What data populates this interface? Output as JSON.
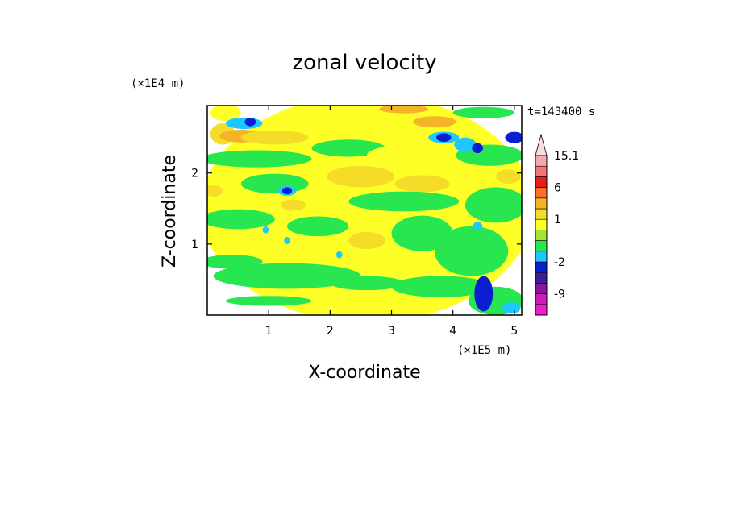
{
  "chart_data": {
    "type": "heatmap",
    "title": "zonal velocity",
    "xlabel": "X-coordinate",
    "ylabel": "Z-coordinate",
    "x_unit": "(×1E5 m)",
    "y_unit": "(×1E4 m)",
    "time_label": "t=143400 s",
    "xlim": [
      0,
      5.12
    ],
    "ylim": [
      0,
      2.95
    ],
    "x_ticks": [
      "1",
      "2",
      "3",
      "4",
      "5"
    ],
    "y_ticks": [
      "1",
      "2"
    ],
    "colorbar": {
      "labels": [
        {
          "text": "15.1",
          "value": 15.1
        },
        {
          "text": "6",
          "value": 6
        },
        {
          "text": "1",
          "value": 1
        },
        {
          "text": "-2",
          "value": -2
        },
        {
          "text": "-9",
          "value": -9
        }
      ],
      "bands": [
        {
          "lo": -16,
          "hi": -12,
          "color": "#f01ec8"
        },
        {
          "lo": -12,
          "hi": -9,
          "color": "#c81eb4"
        },
        {
          "lo": -9,
          "hi": -6,
          "color": "#8c14a0"
        },
        {
          "lo": -6,
          "hi": -4,
          "color": "#3a1e96"
        },
        {
          "lo": -4,
          "hi": -2,
          "color": "#0a1ed2"
        },
        {
          "lo": -2,
          "hi": -1,
          "color": "#1ec8ff"
        },
        {
          "lo": -1,
          "hi": 0,
          "color": "#28e650"
        },
        {
          "lo": 0,
          "hi": 0.5,
          "color": "#a0e632"
        },
        {
          "lo": 0.5,
          "hi": 1,
          "color": "#ffff28"
        },
        {
          "lo": 1,
          "hi": 2,
          "color": "#f5dc28"
        },
        {
          "lo": 2,
          "hi": 4,
          "color": "#f5b428"
        },
        {
          "lo": 4,
          "hi": 6,
          "color": "#ff6e28"
        },
        {
          "lo": 6,
          "hi": 9,
          "color": "#e61e1e"
        },
        {
          "lo": 9,
          "hi": 12,
          "color": "#f07878"
        },
        {
          "lo": 12,
          "hi": 15.1,
          "color": "#f5aaaa"
        },
        {
          "lo": 15.1,
          "hi": 18,
          "color": "#fadcdc"
        }
      ]
    },
    "field_patches": [
      {
        "x": 2.6,
        "z": 1.5,
        "rx": 2.7,
        "rz": 1.6,
        "v": 0.8
      },
      {
        "x": 0.25,
        "z": 2.55,
        "rx": 0.2,
        "rz": 0.15,
        "v": 1.5
      },
      {
        "x": 0.3,
        "z": 2.85,
        "rx": 0.25,
        "rz": 0.12,
        "v": 0.9
      },
      {
        "x": 0.55,
        "z": 2.52,
        "rx": 0.35,
        "rz": 0.09,
        "v": 3
      },
      {
        "x": 1.1,
        "z": 2.5,
        "rx": 0.55,
        "rz": 0.1,
        "v": 1.5
      },
      {
        "x": 0.8,
        "z": 2.2,
        "rx": 0.9,
        "rz": 0.12,
        "v": -0.5
      },
      {
        "x": 2.3,
        "z": 2.35,
        "rx": 0.6,
        "rz": 0.12,
        "v": -0.5
      },
      {
        "x": 3.3,
        "z": 2.25,
        "rx": 0.7,
        "rz": 0.15,
        "v": 0.9
      },
      {
        "x": 4.6,
        "z": 2.25,
        "rx": 0.55,
        "rz": 0.15,
        "v": -0.5
      },
      {
        "x": 0.6,
        "z": 2.7,
        "rx": 0.3,
        "rz": 0.08,
        "v": -1.5
      },
      {
        "x": 0.7,
        "z": 2.72,
        "rx": 0.09,
        "rz": 0.06,
        "v": -3
      },
      {
        "x": 3.7,
        "z": 2.72,
        "rx": 0.35,
        "rz": 0.08,
        "v": 2.5
      },
      {
        "x": 3.2,
        "z": 2.9,
        "rx": 0.4,
        "rz": 0.06,
        "v": 2
      },
      {
        "x": 3.85,
        "z": 2.5,
        "rx": 0.25,
        "rz": 0.08,
        "v": -1.5
      },
      {
        "x": 3.85,
        "z": 2.5,
        "rx": 0.12,
        "rz": 0.06,
        "v": -3
      },
      {
        "x": 4.2,
        "z": 2.4,
        "rx": 0.18,
        "rz": 0.1,
        "v": -1.5
      },
      {
        "x": 4.4,
        "z": 2.35,
        "rx": 0.09,
        "rz": 0.07,
        "v": -3
      },
      {
        "x": 5.0,
        "z": 2.5,
        "rx": 0.15,
        "rz": 0.08,
        "v": -3
      },
      {
        "x": 4.5,
        "z": 2.85,
        "rx": 0.5,
        "rz": 0.08,
        "v": -0.5
      },
      {
        "x": 1.1,
        "z": 1.85,
        "rx": 0.55,
        "rz": 0.14,
        "v": -0.5
      },
      {
        "x": 1.3,
        "z": 1.75,
        "rx": 0.15,
        "rz": 0.07,
        "v": -1.5
      },
      {
        "x": 1.3,
        "z": 1.75,
        "rx": 0.08,
        "rz": 0.05,
        "v": -3
      },
      {
        "x": 0.1,
        "z": 1.75,
        "rx": 0.15,
        "rz": 0.08,
        "v": 1.5
      },
      {
        "x": 1.4,
        "z": 1.55,
        "rx": 0.2,
        "rz": 0.08,
        "v": 1.5
      },
      {
        "x": 2.5,
        "z": 1.95,
        "rx": 0.55,
        "rz": 0.15,
        "v": 1.5
      },
      {
        "x": 3.5,
        "z": 1.85,
        "rx": 0.45,
        "rz": 0.12,
        "v": 1.5
      },
      {
        "x": 3.2,
        "z": 1.6,
        "rx": 0.9,
        "rz": 0.14,
        "v": -0.5
      },
      {
        "x": 4.7,
        "z": 1.55,
        "rx": 0.5,
        "rz": 0.25,
        "v": -0.5
      },
      {
        "x": 0.5,
        "z": 1.35,
        "rx": 0.6,
        "rz": 0.14,
        "v": -0.5
      },
      {
        "x": 1.8,
        "z": 1.25,
        "rx": 0.5,
        "rz": 0.14,
        "v": -0.5
      },
      {
        "x": 3.5,
        "z": 1.15,
        "rx": 0.5,
        "rz": 0.25,
        "v": -0.5
      },
      {
        "x": 4.3,
        "z": 0.9,
        "rx": 0.6,
        "rz": 0.35,
        "v": -0.5
      },
      {
        "x": 0.4,
        "z": 0.75,
        "rx": 0.5,
        "rz": 0.1,
        "v": -0.5
      },
      {
        "x": 1.3,
        "z": 0.55,
        "rx": 1.2,
        "rz": 0.18,
        "v": -0.5
      },
      {
        "x": 2.6,
        "z": 0.45,
        "rx": 0.6,
        "rz": 0.1,
        "v": -0.5
      },
      {
        "x": 3.8,
        "z": 0.4,
        "rx": 0.8,
        "rz": 0.15,
        "v": -0.5
      },
      {
        "x": 4.7,
        "z": 0.2,
        "rx": 0.45,
        "rz": 0.2,
        "v": -0.5
      },
      {
        "x": 1.0,
        "z": 0.2,
        "rx": 0.7,
        "rz": 0.07,
        "v": -0.5
      },
      {
        "x": 4.5,
        "z": 0.3,
        "rx": 0.15,
        "rz": 0.25,
        "v": -3
      },
      {
        "x": 4.95,
        "z": 0.1,
        "rx": 0.15,
        "rz": 0.08,
        "v": -1.5
      },
      {
        "x": 1.3,
        "z": 1.05,
        "rx": 0.05,
        "rz": 0.05,
        "v": -1.5
      },
      {
        "x": 0.95,
        "z": 1.2,
        "rx": 0.05,
        "rz": 0.05,
        "v": -1.5
      },
      {
        "x": 4.4,
        "z": 1.25,
        "rx": 0.08,
        "rz": 0.06,
        "v": -1.5
      },
      {
        "x": 2.15,
        "z": 0.85,
        "rx": 0.05,
        "rz": 0.05,
        "v": -1.5
      },
      {
        "x": 2.6,
        "z": 1.05,
        "rx": 0.3,
        "rz": 0.12,
        "v": 1.5
      },
      {
        "x": 4.9,
        "z": 1.95,
        "rx": 0.2,
        "rz": 0.1,
        "v": 1.5
      }
    ]
  }
}
